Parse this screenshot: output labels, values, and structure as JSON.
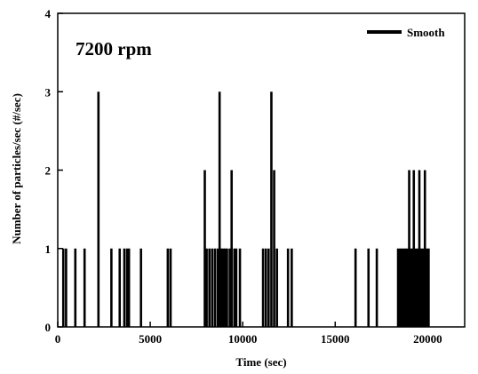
{
  "chart_data": {
    "type": "bar",
    "annotation": "7200 rpm",
    "xlabel": "Time (sec)",
    "ylabel": "Number of particles/sec (#/sec)",
    "xlim": [
      0,
      22000
    ],
    "ylim": [
      0,
      4
    ],
    "xticks": [
      0,
      5000,
      10000,
      15000,
      20000
    ],
    "yticks": [
      0,
      1,
      2,
      3,
      4
    ],
    "grid": false,
    "legend": {
      "position": "top-right"
    },
    "series": [
      {
        "name": "Smooth",
        "color": "#000000",
        "points": [
          [
            300,
            1
          ],
          [
            450,
            1
          ],
          [
            950,
            1
          ],
          [
            1450,
            1
          ],
          [
            2200,
            3
          ],
          [
            2900,
            1
          ],
          [
            3350,
            1
          ],
          [
            3600,
            1
          ],
          [
            3750,
            1
          ],
          [
            3850,
            1
          ],
          [
            4500,
            1
          ],
          [
            5950,
            1
          ],
          [
            6100,
            1
          ],
          [
            7950,
            2
          ],
          [
            8050,
            1
          ],
          [
            8200,
            1
          ],
          [
            8350,
            1
          ],
          [
            8500,
            1
          ],
          [
            8650,
            1
          ],
          [
            8750,
            3
          ],
          [
            8850,
            1
          ],
          [
            8950,
            1
          ],
          [
            9050,
            1
          ],
          [
            9150,
            1
          ],
          [
            9300,
            1
          ],
          [
            9400,
            2
          ],
          [
            9550,
            1
          ],
          [
            9650,
            1
          ],
          [
            9850,
            1
          ],
          [
            11100,
            1
          ],
          [
            11250,
            1
          ],
          [
            11400,
            1
          ],
          [
            11550,
            3
          ],
          [
            11700,
            2
          ],
          [
            11850,
            1
          ],
          [
            12450,
            1
          ],
          [
            12650,
            1
          ],
          [
            16100,
            1
          ],
          [
            16800,
            1
          ],
          [
            17250,
            1
          ],
          [
            18400,
            1
          ],
          [
            18500,
            1
          ],
          [
            18600,
            1
          ],
          [
            18700,
            1
          ],
          [
            18800,
            1
          ],
          [
            18900,
            1
          ],
          [
            19000,
            2
          ],
          [
            19100,
            1
          ],
          [
            19200,
            1
          ],
          [
            19250,
            2
          ],
          [
            19350,
            1
          ],
          [
            19450,
            1
          ],
          [
            19550,
            2
          ],
          [
            19650,
            1
          ],
          [
            19750,
            1
          ],
          [
            19850,
            2
          ],
          [
            19950,
            1
          ],
          [
            20050,
            1
          ]
        ]
      }
    ]
  }
}
